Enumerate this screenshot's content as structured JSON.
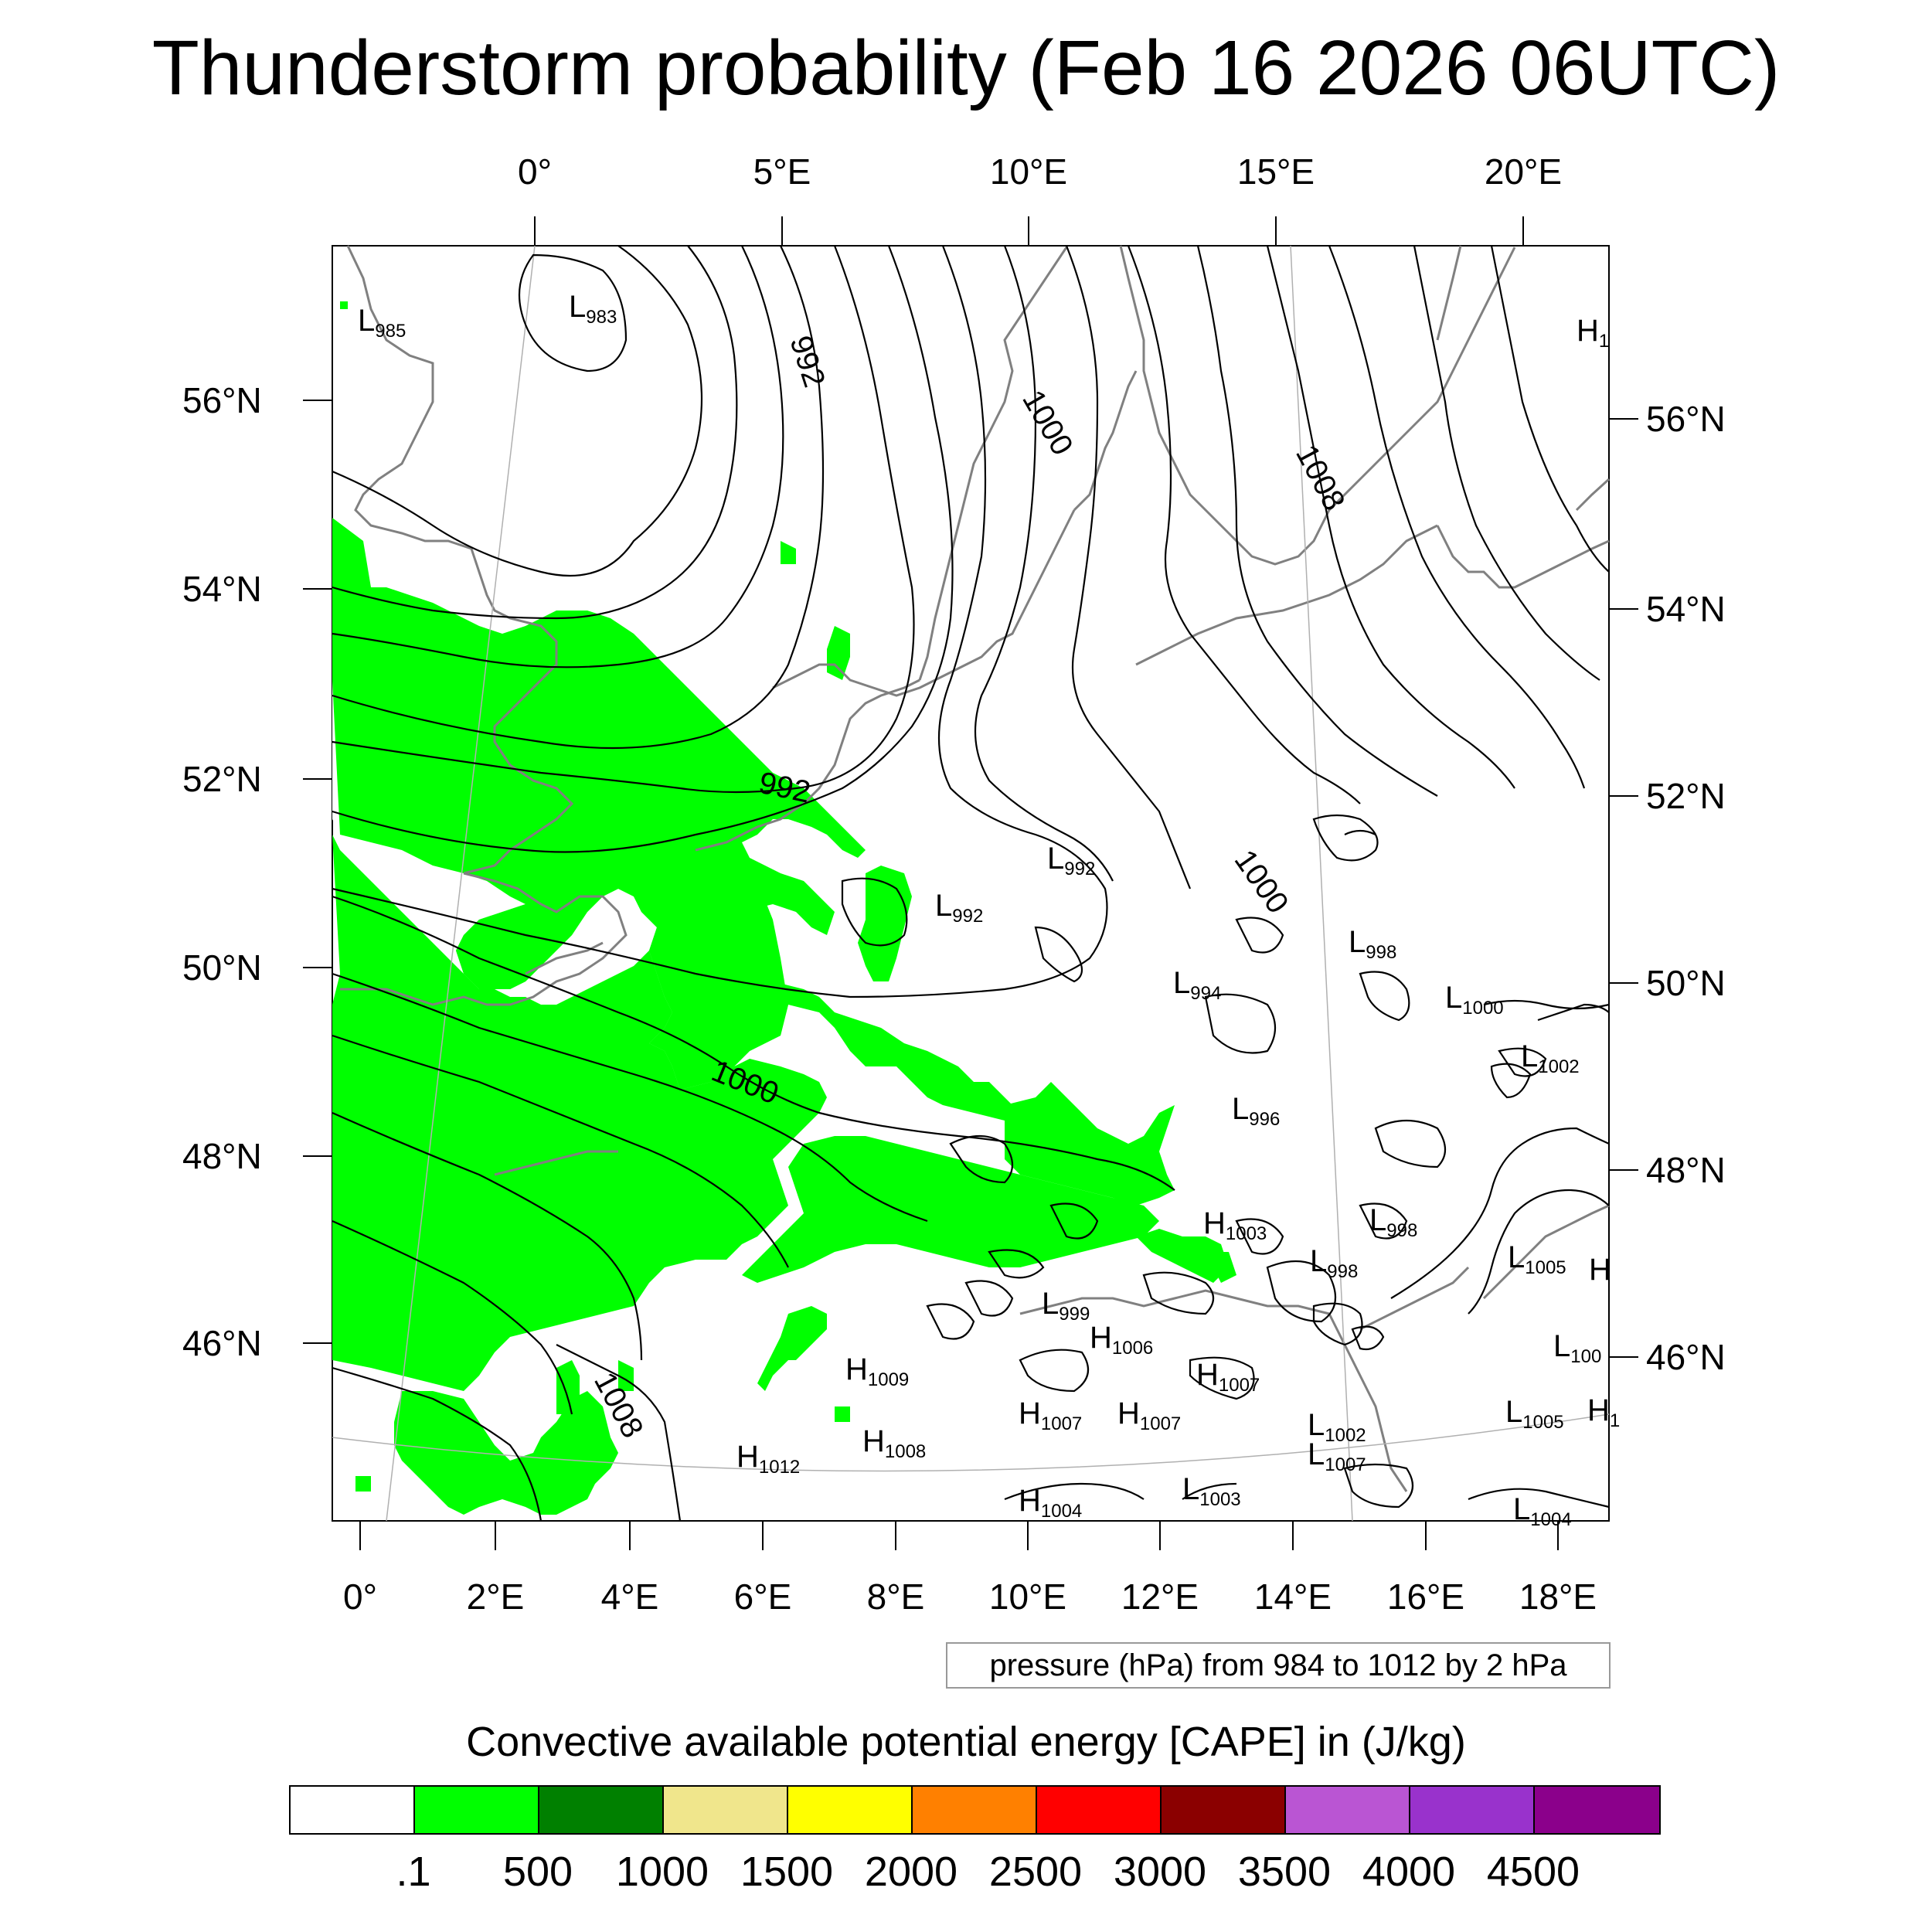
{
  "title": "Thunderstorm probability (Feb 16 2026 06UTC)",
  "axes": {
    "top_lon_labels": [
      "0°",
      "5°E",
      "10°E",
      "15°E",
      "20°E"
    ],
    "bottom_lon_labels": [
      "0°",
      "2°E",
      "4°E",
      "6°E",
      "8°E",
      "10°E",
      "12°E",
      "14°E",
      "16°E",
      "18°E"
    ],
    "left_lat_labels": [
      "56°N",
      "54°N",
      "52°N",
      "50°N",
      "48°N",
      "46°N"
    ],
    "right_lat_labels": [
      "56°N",
      "54°N",
      "52°N",
      "50°N",
      "48°N",
      "46°N"
    ]
  },
  "pressure_labels": [
    {
      "text": "L",
      "sub": "985"
    },
    {
      "text": "L",
      "sub": "983"
    },
    {
      "text": "992"
    },
    {
      "text": "1000"
    },
    {
      "text": "1008"
    },
    {
      "text": "992"
    },
    {
      "text": "L",
      "sub": "992"
    },
    {
      "text": "L",
      "sub": "992"
    },
    {
      "text": "1000"
    },
    {
      "text": "L",
      "sub": "998"
    },
    {
      "text": "L",
      "sub": "994"
    },
    {
      "text": "L",
      "sub": "1000"
    },
    {
      "text": "L",
      "sub": "1002"
    },
    {
      "text": "1000"
    },
    {
      "text": "L",
      "sub": "996"
    },
    {
      "text": "H",
      "sub": "1003"
    },
    {
      "text": "L",
      "sub": "998"
    },
    {
      "text": "L",
      "sub": "998"
    },
    {
      "text": "L",
      "sub": "1005"
    },
    {
      "text": "L",
      "sub": "999"
    },
    {
      "text": "H",
      "sub": "1006"
    },
    {
      "text": "H",
      "sub": "1009"
    },
    {
      "text": "H",
      "sub": "1007"
    },
    {
      "text": "H",
      "sub": "1007"
    },
    {
      "text": "H",
      "sub": "1007"
    },
    {
      "text": "L",
      "sub": "1002"
    },
    {
      "text": "1008"
    },
    {
      "text": "H",
      "sub": "1012"
    },
    {
      "text": "H",
      "sub": "1008"
    },
    {
      "text": "L",
      "sub": "1007"
    },
    {
      "text": "H",
      "sub": "1004"
    },
    {
      "text": "L",
      "sub": "1003"
    },
    {
      "text": "L",
      "sub": "1005"
    },
    {
      "text": "L",
      "sub": "100"
    },
    {
      "text": "H",
      "sub": "1"
    },
    {
      "text": "H",
      "sub": ""
    },
    {
      "text": "H",
      "sub": "1"
    },
    {
      "text": "L",
      "sub": "1004"
    }
  ],
  "contour_note": "pressure (hPa) from 984 to 1012 by 2 hPa",
  "colorbar": {
    "title": "Convective available potential energy [CAPE] in (J/kg)",
    "colors": [
      "#ffffff",
      "#00ff00",
      "#008000",
      "#f0e68c",
      "#ffff00",
      "#ff8000",
      "#ff0000",
      "#8b0000",
      "#ba55d3",
      "#9932cc",
      "#8b008b"
    ],
    "labels": [
      ".1",
      "500",
      "1000",
      "1500",
      "2000",
      "2500",
      "3000",
      "3500",
      "4000",
      "4500"
    ]
  },
  "colors": {
    "cape_low": "#00ff00",
    "contour": "#000000",
    "coastline": "#808080",
    "frame": "#000000"
  }
}
